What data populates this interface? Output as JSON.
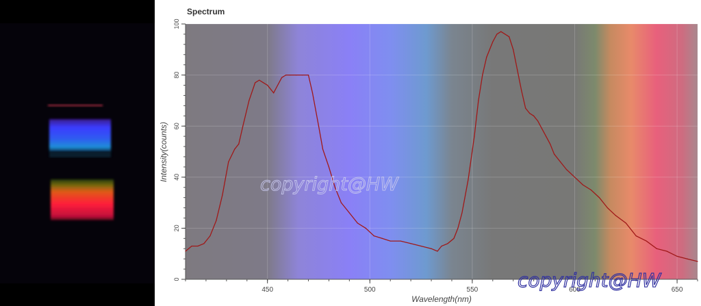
{
  "chart_data": {
    "type": "line",
    "title": "Spectrum",
    "xlabel": "Wavelength(nm)",
    "ylabel": "Intensity(counts)",
    "xlim": [
      410,
      660
    ],
    "ylim": [
      0,
      100
    ],
    "x_ticks": [
      450,
      500,
      550,
      600,
      650
    ],
    "y_ticks": [
      0,
      20,
      40,
      60,
      80,
      100
    ],
    "grid": true,
    "background": "visible-spectrum color gradient",
    "series": [
      {
        "color": "#a01818",
        "x": [
          410,
          413,
          416,
          419,
          422,
          425,
          428,
          431,
          434,
          436,
          438,
          441,
          444,
          446,
          448,
          450,
          453,
          455,
          457,
          459,
          461,
          464,
          467,
          470,
          472,
          475,
          477,
          480,
          483,
          486,
          490,
          494,
          498,
          502,
          506,
          510,
          515,
          520,
          525,
          530,
          533,
          535,
          538,
          541,
          543,
          545,
          548,
          551,
          553,
          555,
          557,
          560,
          562,
          564,
          566,
          568,
          570,
          572,
          574,
          576,
          578,
          580,
          582,
          584,
          586,
          588,
          590,
          593,
          596,
          600,
          604,
          608,
          612,
          616,
          620,
          625,
          630,
          635,
          640,
          645,
          650,
          655,
          660
        ],
        "y": [
          11,
          13,
          13,
          14,
          17,
          23,
          33,
          46,
          51,
          53,
          60,
          70,
          77,
          78,
          77,
          76,
          73,
          76,
          79,
          80,
          80,
          80,
          80,
          80,
          73,
          60,
          51,
          44,
          36,
          30,
          26,
          22,
          20,
          17,
          16,
          15,
          15,
          14,
          13,
          12,
          11,
          13,
          14,
          16,
          20,
          26,
          39,
          56,
          70,
          80,
          87,
          93,
          96,
          97,
          96,
          95,
          90,
          82,
          74,
          67,
          65,
          64,
          62,
          59,
          56,
          53,
          49,
          46,
          43,
          40,
          37,
          35,
          32,
          28,
          25,
          22,
          17,
          15,
          12,
          11,
          9,
          8,
          7
        ]
      }
    ]
  },
  "watermarks": [
    "copyright@HW",
    "copyright@HW"
  ],
  "colors": {
    "line": "#a01818",
    "plot_gray": "#7a7678",
    "title": "#333333"
  }
}
